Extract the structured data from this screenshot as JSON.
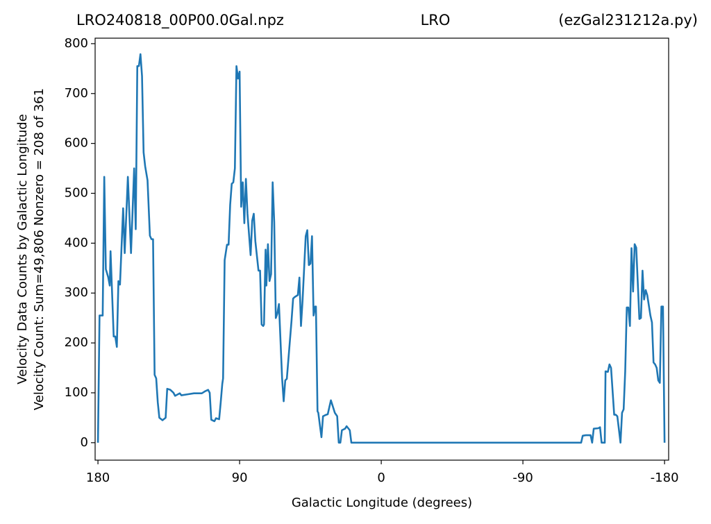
{
  "chart_data": {
    "type": "line",
    "title": [
      "LRO240818_00P00.0Gal.npz",
      "LRO",
      "(ezGal231212a.py)"
    ],
    "xlabel": "Galactic Longitude (degrees)",
    "ylabel": [
      "Velocity Data Counts by Galactic Longitude",
      "Velocity Count: Sum=49,806 Nonzero = 208 of 361"
    ],
    "xlim": [
      181.8,
      -182.6
    ],
    "ylim": [
      -35,
      811
    ],
    "xticks": [
      180,
      90,
      0,
      -90,
      -180
    ],
    "yticks": [
      0,
      100,
      200,
      300,
      400,
      500,
      600,
      700,
      800
    ],
    "grid": false,
    "series": [
      {
        "name": "Velocity Count",
        "color": "#1f77b4",
        "x": [
          180,
          179,
          177,
          176,
          175,
          173.5,
          172.5,
          172,
          170,
          169,
          168,
          167,
          166,
          164,
          163,
          161,
          159,
          157,
          156,
          155,
          154,
          153,
          152,
          151,
          150,
          148.5,
          147,
          146,
          145,
          144,
          143,
          142,
          141,
          139,
          137,
          136,
          134,
          132,
          131,
          128,
          127,
          123,
          119,
          114,
          112,
          110,
          109,
          108,
          106,
          105,
          103,
          102,
          101,
          100.5,
          99.5,
          98,
          97,
          96,
          95,
          94,
          93,
          92,
          91,
          90,
          89,
          88,
          87,
          86,
          85,
          83,
          82,
          81,
          80,
          78,
          77,
          76,
          75,
          74.5,
          73.5,
          73,
          72,
          71,
          70,
          69,
          68,
          67,
          66,
          65,
          63,
          62,
          61,
          60,
          58,
          57,
          56,
          55,
          53,
          52,
          51,
          50,
          48,
          47,
          46,
          45,
          44,
          43,
          42,
          41.5,
          40.5,
          40,
          38,
          37,
          35,
          34,
          32,
          30.5,
          29.5,
          28,
          27,
          26,
          25,
          23,
          22,
          20,
          19,
          -127,
          -128,
          -130,
          -133,
          -134,
          -135,
          -138,
          -139,
          -140,
          -142,
          -142.5,
          -144,
          -145,
          -146,
          -148,
          -149,
          -150,
          -152,
          -153,
          -154,
          -155,
          -156,
          -157,
          -158,
          -159,
          -160,
          -161,
          -162,
          -164,
          -165,
          -166,
          -167,
          -168,
          -169,
          -171,
          -172,
          -173,
          -174,
          -175,
          -176,
          -177,
          -178,
          -179,
          -180
        ],
        "values": [
          0,
          255,
          255,
          533,
          348,
          332,
          315,
          384,
          213,
          213,
          192,
          324,
          317,
          470,
          380,
          533,
          380,
          550,
          428,
          755,
          755,
          779,
          735,
          582,
          554,
          526,
          415,
          408,
          408,
          136,
          129,
          81,
          50,
          45,
          50,
          108,
          106,
          100,
          94,
          99,
          95,
          97,
          99,
          99,
          103,
          106,
          100,
          46,
          43,
          49,
          47,
          81,
          118,
          129,
          366,
          397,
          397,
          477,
          519,
          522,
          550,
          755,
          730,
          744,
          473,
          522,
          440,
          529,
          459,
          376,
          445,
          459,
          404,
          345,
          345,
          237,
          234,
          237,
          387,
          315,
          398,
          324,
          338,
          522,
          442,
          250,
          259,
          278,
          129,
          83,
          125,
          128,
          206,
          245,
          289,
          292,
          296,
          331,
          234,
          285,
          414,
          426,
          356,
          359,
          414,
          255,
          273,
          273,
          63,
          60,
          11,
          53,
          56,
          57,
          85,
          70,
          60,
          53,
          0,
          0,
          25,
          28,
          33,
          25,
          0,
          0,
          14,
          15,
          15,
          0,
          28,
          29,
          31,
          0,
          0,
          143,
          142,
          157,
          150,
          56,
          56,
          53,
          0,
          60,
          67,
          143,
          271,
          271,
          234,
          390,
          303,
          398,
          391,
          248,
          250,
          345,
          287,
          306,
          296,
          255,
          241,
          161,
          157,
          150,
          125,
          120,
          273,
          273,
          0
        ]
      }
    ]
  }
}
